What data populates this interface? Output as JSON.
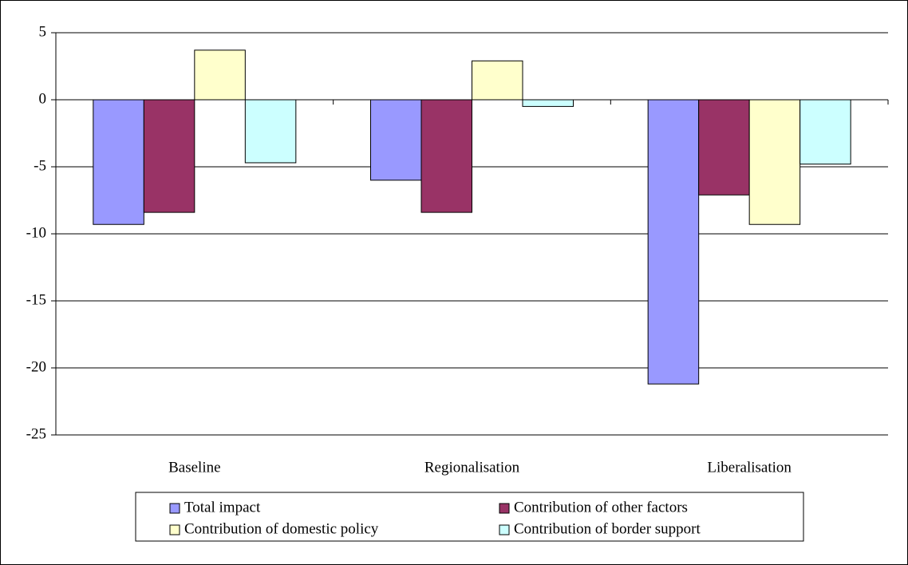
{
  "chart_data": {
    "type": "bar",
    "categories": [
      "Baseline",
      "Regionalisation",
      "Liberalisation"
    ],
    "series": [
      {
        "name": "Total impact",
        "color": "#9999ff",
        "values": [
          -9.3,
          -6.0,
          -21.2
        ]
      },
      {
        "name": "Contribution of other factors",
        "color": "#993366",
        "values": [
          -8.4,
          -8.4,
          -7.1
        ]
      },
      {
        "name": "Contribution of domestic policy",
        "color": "#ffffcc",
        "values": [
          3.7,
          2.9,
          -9.3
        ]
      },
      {
        "name": "Contribution of border support",
        "color": "#ccffff",
        "values": [
          -4.7,
          -0.5,
          -4.8
        ]
      }
    ],
    "ylim": [
      -25,
      5
    ],
    "yticks": [
      5,
      0,
      -5,
      -10,
      -15,
      -20,
      -25
    ],
    "grid": true,
    "legend": "bottom"
  }
}
